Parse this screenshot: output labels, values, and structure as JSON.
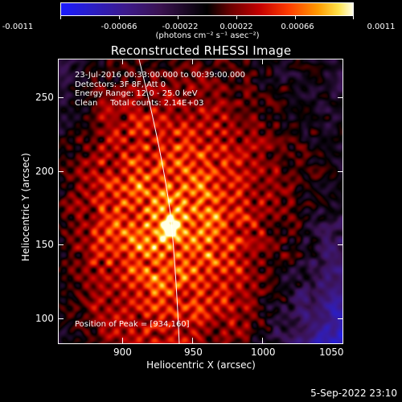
{
  "colorbar": {
    "ticks": [
      "-0.0011",
      "-0.00066",
      "-0.00022",
      "0.00022",
      "0.00066",
      "0.0011"
    ],
    "units": "(photons cm⁻² s⁻¹ asec⁻²)"
  },
  "title": "Reconstructed RHESSI Image",
  "info": {
    "line1": "23-Jul-2016 00:33:00.000 to 00:39:00.000",
    "line2": "Detectors: 3F 8F, Att 0",
    "line3": "Energy Range: 12.0 - 25.0 keV",
    "line4": "Clean     Total counts: 2.14E+03"
  },
  "peak": "Position of Peak = [934,160]",
  "axes": {
    "xlabel": "Heliocentric X (arcsec)",
    "ylabel": "Heliocentric Y (arcsec)",
    "xticks": [
      "900",
      "950",
      "1000",
      "1050"
    ],
    "yticks": [
      "250",
      "200",
      "150",
      "100"
    ]
  },
  "footer_date": "5-Sep-2022 23:10",
  "colors": {
    "background": "#000000",
    "limb": "#ffffff",
    "peak": "#ffffe6"
  }
}
